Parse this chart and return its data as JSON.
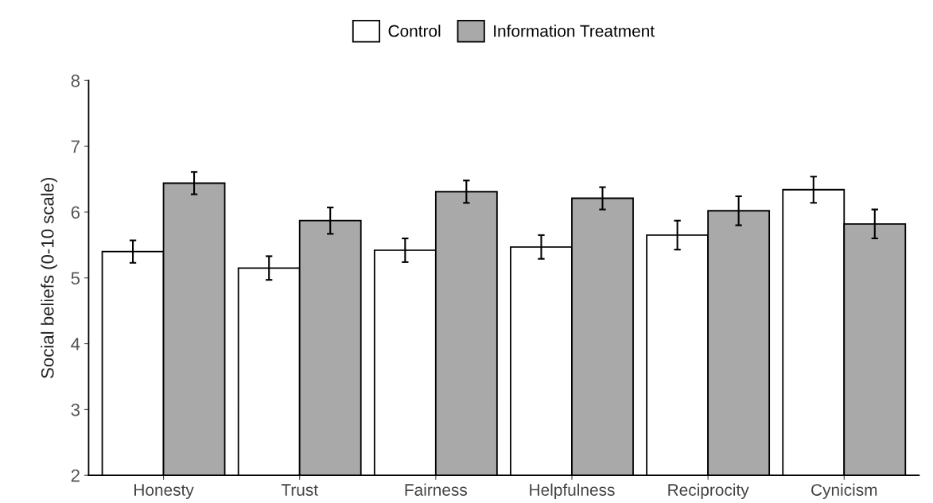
{
  "chart_data": {
    "type": "bar",
    "ylabel": "Social beliefs (0-10 scale)",
    "categories": [
      "Honesty",
      "Trust",
      "Fairness",
      "Helpfulness",
      "Reciprocity",
      "Cynicism"
    ],
    "series": [
      {
        "name": "Control",
        "color": "#ffffff",
        "values": [
          5.4,
          5.15,
          5.42,
          5.47,
          5.65,
          6.34
        ],
        "errors": [
          0.17,
          0.18,
          0.18,
          0.18,
          0.22,
          0.2
        ]
      },
      {
        "name": "Information Treatment",
        "color": "#a9a9a9",
        "values": [
          6.44,
          5.87,
          6.31,
          6.21,
          6.02,
          5.82
        ],
        "errors": [
          0.17,
          0.2,
          0.17,
          0.17,
          0.22,
          0.22
        ]
      }
    ],
    "ylim": [
      2,
      8
    ],
    "yticks": [
      2,
      3,
      4,
      5,
      6,
      7,
      8
    ],
    "grid": false,
    "legend": "top"
  }
}
